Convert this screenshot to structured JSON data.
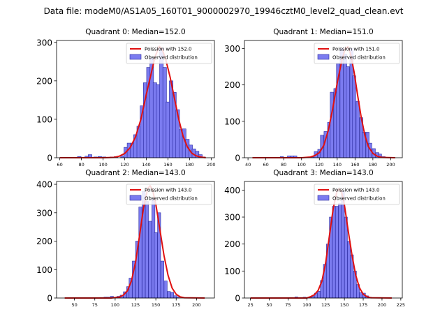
{
  "suptitle": "Data file: modeM0/AS1A05_160T01_9000002970_19946cztM0_level2_quad_clean.evt",
  "colors": {
    "bar_fill": "#7b7bf0",
    "bar_edge": "#2a2aa0",
    "curve": "#e01010"
  },
  "chart_data": [
    {
      "type": "bar",
      "title": "Quadrant 0: Median=152.0",
      "median": 152.0,
      "legend": {
        "position": "top-right",
        "curve_label": "Poission with 152.0",
        "bars_label": "Observed distribution"
      },
      "xlim": [
        57,
        203
      ],
      "ylim": [
        0,
        305
      ],
      "xticks": [
        60,
        80,
        100,
        120,
        140,
        160,
        180,
        200
      ],
      "yticks": [
        0,
        100,
        200,
        300
      ],
      "bin_width": 3.4,
      "bins": [
        [
          78,
          3
        ],
        [
          85,
          4
        ],
        [
          88,
          8
        ],
        [
          93,
          2
        ],
        [
          97,
          3
        ],
        [
          101,
          2
        ],
        [
          108,
          2
        ],
        [
          112,
          3
        ],
        [
          118,
          5
        ],
        [
          121,
          27
        ],
        [
          124,
          38
        ],
        [
          127,
          38
        ],
        [
          130,
          60
        ],
        [
          133,
          82
        ],
        [
          136,
          135
        ],
        [
          139,
          195
        ],
        [
          142,
          235
        ],
        [
          145,
          260
        ],
        [
          148,
          195
        ],
        [
          151,
          190
        ],
        [
          154,
          285
        ],
        [
          157,
          235
        ],
        [
          160,
          145
        ],
        [
          163,
          200
        ],
        [
          166,
          170
        ],
        [
          169,
          125
        ],
        [
          172,
          73
        ],
        [
          175,
          75
        ],
        [
          178,
          48
        ],
        [
          181,
          33
        ],
        [
          184,
          23
        ],
        [
          187,
          17
        ],
        [
          190,
          8
        ],
        [
          193,
          2
        ]
      ],
      "curve": [
        [
          60,
          0
        ],
        [
          100,
          0
        ],
        [
          110,
          1
        ],
        [
          115,
          4
        ],
        [
          120,
          11
        ],
        [
          125,
          26
        ],
        [
          130,
          54
        ],
        [
          135,
          100
        ],
        [
          140,
          165
        ],
        [
          145,
          225
        ],
        [
          148,
          262
        ],
        [
          152,
          290
        ],
        [
          155,
          280
        ],
        [
          158,
          255
        ],
        [
          162,
          210
        ],
        [
          166,
          155
        ],
        [
          170,
          100
        ],
        [
          174,
          56
        ],
        [
          178,
          28
        ],
        [
          182,
          12
        ],
        [
          186,
          5
        ],
        [
          190,
          2
        ],
        [
          195,
          0
        ]
      ]
    },
    {
      "type": "bar",
      "title": "Quadrant 1: Median=151.0",
      "median": 151.0,
      "legend": {
        "position": "top-right",
        "curve_label": "Poission with 151.0",
        "bars_label": "Observed distribution"
      },
      "xlim": [
        36,
        213
      ],
      "ylim": [
        0,
        322
      ],
      "xticks": [
        40,
        60,
        80,
        100,
        120,
        140,
        160,
        180,
        200
      ],
      "yticks": [
        0,
        100,
        200,
        300
      ],
      "bin_width": 3.6,
      "bins": [
        [
          78,
          3
        ],
        [
          86,
          5
        ],
        [
          90,
          5
        ],
        [
          93,
          5
        ],
        [
          112,
          2
        ],
        [
          116,
          17
        ],
        [
          120,
          23
        ],
        [
          123,
          62
        ],
        [
          127,
          72
        ],
        [
          131,
          97
        ],
        [
          134,
          180
        ],
        [
          138,
          190
        ],
        [
          141,
          260
        ],
        [
          145,
          300
        ],
        [
          149,
          285
        ],
        [
          152,
          250
        ],
        [
          156,
          300
        ],
        [
          159,
          225
        ],
        [
          163,
          155
        ],
        [
          167,
          110
        ],
        [
          170,
          70
        ],
        [
          174,
          70
        ],
        [
          177,
          40
        ],
        [
          181,
          25
        ],
        [
          185,
          14
        ],
        [
          188,
          10
        ],
        [
          192,
          3
        ],
        [
          196,
          1
        ]
      ],
      "curve": [
        [
          45,
          0
        ],
        [
          100,
          0
        ],
        [
          110,
          2
        ],
        [
          115,
          6
        ],
        [
          120,
          14
        ],
        [
          125,
          34
        ],
        [
          130,
          75
        ],
        [
          135,
          135
        ],
        [
          140,
          205
        ],
        [
          145,
          265
        ],
        [
          149,
          300
        ],
        [
          152,
          305
        ],
        [
          155,
          285
        ],
        [
          159,
          235
        ],
        [
          163,
          170
        ],
        [
          167,
          110
        ],
        [
          171,
          62
        ],
        [
          175,
          30
        ],
        [
          180,
          12
        ],
        [
          185,
          4
        ],
        [
          190,
          1
        ],
        [
          205,
          0
        ]
      ]
    },
    {
      "type": "bar",
      "title": "Quadrant 2: Median=143.0",
      "median": 143.0,
      "legend": {
        "position": "top-right",
        "curve_label": "Poission with 143.0",
        "bars_label": "Observed distribution"
      },
      "xlim": [
        28,
        222
      ],
      "ylim": [
        0,
        410
      ],
      "xticks": [
        50,
        75,
        100,
        125,
        150,
        175,
        200
      ],
      "yticks": [
        0,
        100,
        200,
        300,
        400
      ],
      "bin_width": 3.8,
      "bins": [
        [
          83,
          2
        ],
        [
          88,
          3
        ],
        [
          91,
          3
        ],
        [
          96,
          6
        ],
        [
          100,
          2
        ],
        [
          104,
          6
        ],
        [
          108,
          10
        ],
        [
          112,
          22
        ],
        [
          116,
          40
        ],
        [
          119,
          70
        ],
        [
          123,
          130
        ],
        [
          127,
          200
        ],
        [
          131,
          320
        ],
        [
          135,
          375
        ],
        [
          139,
          340
        ],
        [
          143,
          270
        ],
        [
          147,
          350
        ],
        [
          150,
          230
        ],
        [
          154,
          300
        ],
        [
          158,
          130
        ],
        [
          162,
          60
        ],
        [
          166,
          23
        ],
        [
          170,
          20
        ],
        [
          174,
          8
        ],
        [
          177,
          3
        ]
      ],
      "curve": [
        [
          38,
          0
        ],
        [
          95,
          0
        ],
        [
          105,
          3
        ],
        [
          110,
          10
        ],
        [
          115,
          25
        ],
        [
          120,
          60
        ],
        [
          125,
          125
        ],
        [
          130,
          220
        ],
        [
          135,
          320
        ],
        [
          140,
          385
        ],
        [
          143,
          395
        ],
        [
          146,
          380
        ],
        [
          150,
          330
        ],
        [
          155,
          240
        ],
        [
          160,
          150
        ],
        [
          165,
          80
        ],
        [
          170,
          35
        ],
        [
          175,
          13
        ],
        [
          180,
          4
        ],
        [
          185,
          1
        ],
        [
          210,
          0
        ]
      ]
    },
    {
      "type": "bar",
      "title": "Quadrant 3: Median=143.0",
      "median": 143.0,
      "legend": {
        "position": "top-right",
        "curve_label": "Poission with 143.0",
        "bars_label": "Observed distribution"
      },
      "xlim": [
        17,
        227
      ],
      "ylim": [
        0,
        432
      ],
      "xticks": [
        25,
        50,
        75,
        100,
        125,
        150,
        175,
        200,
        225
      ],
      "yticks": [
        0,
        100,
        200,
        300,
        400
      ],
      "bin_width": 3.9,
      "bins": [
        [
          80,
          2
        ],
        [
          86,
          4
        ],
        [
          93,
          2
        ],
        [
          97,
          3
        ],
        [
          104,
          3
        ],
        [
          108,
          6
        ],
        [
          112,
          18
        ],
        [
          116,
          25
        ],
        [
          120,
          65
        ],
        [
          124,
          125
        ],
        [
          128,
          200
        ],
        [
          132,
          300
        ],
        [
          136,
          340
        ],
        [
          140,
          340
        ],
        [
          144,
          350
        ],
        [
          148,
          395
        ],
        [
          152,
          300
        ],
        [
          156,
          210
        ],
        [
          160,
          160
        ],
        [
          164,
          100
        ],
        [
          168,
          50
        ],
        [
          172,
          20
        ],
        [
          176,
          18
        ],
        [
          180,
          8
        ],
        [
          184,
          3
        ],
        [
          188,
          2
        ]
      ],
      "curve": [
        [
          25,
          0
        ],
        [
          100,
          0
        ],
        [
          105,
          5
        ],
        [
          110,
          12
        ],
        [
          115,
          28
        ],
        [
          120,
          62
        ],
        [
          125,
          130
        ],
        [
          130,
          230
        ],
        [
          135,
          330
        ],
        [
          140,
          395
        ],
        [
          143,
          405
        ],
        [
          146,
          395
        ],
        [
          150,
          345
        ],
        [
          155,
          250
        ],
        [
          160,
          160
        ],
        [
          165,
          85
        ],
        [
          170,
          38
        ],
        [
          175,
          14
        ],
        [
          180,
          5
        ],
        [
          185,
          1
        ],
        [
          213,
          0
        ]
      ]
    }
  ]
}
